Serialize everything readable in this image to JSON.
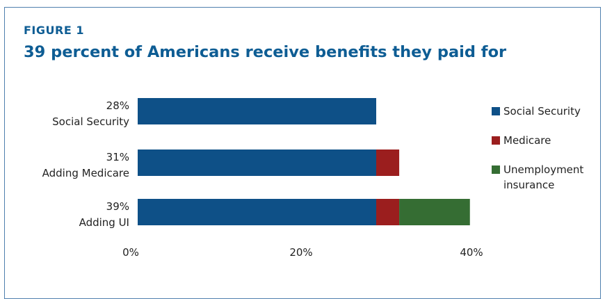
{
  "figure": {
    "label": "FIGURE 1",
    "title": "39 percent of Americans receive benefits they paid for"
  },
  "chart_data": {
    "type": "bar",
    "orientation": "horizontal",
    "stacked": true,
    "categories": [
      {
        "pct_label": "28%",
        "name": "Social Security"
      },
      {
        "pct_label": "31%",
        "name": "Adding Medicare"
      },
      {
        "pct_label": "39%",
        "name": "Adding UI"
      }
    ],
    "series": [
      {
        "name": "Social Security",
        "color": "#0e5087",
        "values": [
          28,
          28,
          28
        ]
      },
      {
        "name": "Medicare",
        "color": "#9b1e1e",
        "values": [
          0,
          2.7,
          2.7
        ]
      },
      {
        "name": "Unemployment insurance",
        "color": "#356d33",
        "values": [
          0,
          0,
          8.3
        ]
      }
    ],
    "xlim": [
      0,
      40
    ],
    "x_ticks": [
      "0%",
      "20%",
      "40%"
    ],
    "grid": false,
    "legend_position": "right"
  }
}
